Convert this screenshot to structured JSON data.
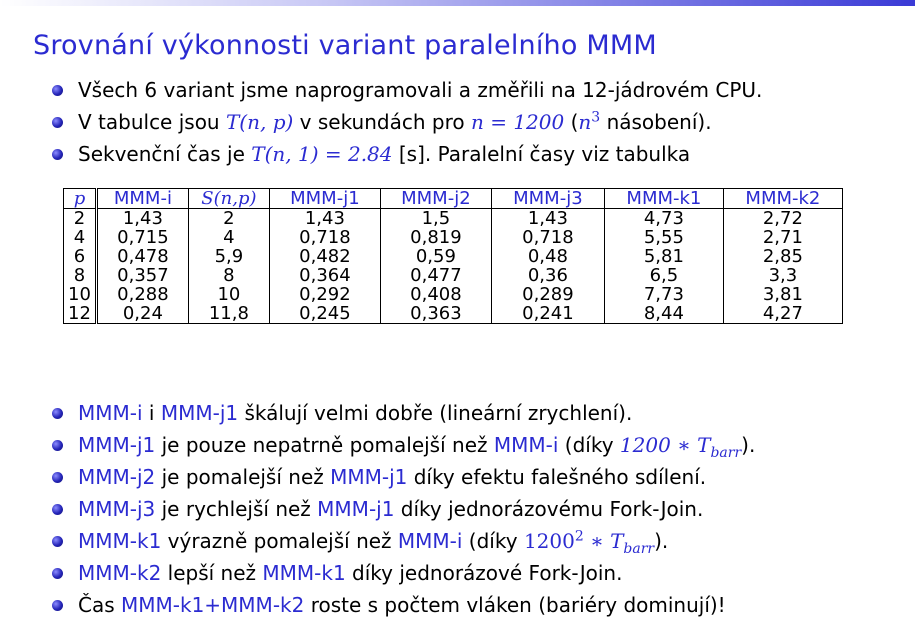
{
  "title": "Srovnání výkonnosti variant paralelního MMM",
  "intro": {
    "b1": "Všech 6 variant jsme naprogramovali a změřili na 12-jádrovém CPU.",
    "b2_a": "V tabulce jsou ",
    "b2_m1": "T(n, p)",
    "b2_b": " v sekundách pro ",
    "b2_m2": "n = 1200",
    "b2_c": " (",
    "b2_m3": "n",
    "b2_m3sup": "3",
    "b2_d": " násobení).",
    "b3_a": "Sekvenční čas je ",
    "b3_m": "T(n, 1) = 2.84",
    "b3_b": " [s]. Paralelní časy viz tabulka"
  },
  "table": {
    "headers": [
      "p",
      "MMM-i",
      "S(n,p)",
      "MMM-j1",
      "MMM-j2",
      "MMM-j3",
      "MMM-k1",
      "MMM-k2"
    ],
    "rows": [
      [
        "2",
        "1,43",
        "2",
        "1,43",
        "1,5",
        "1,43",
        "4,73",
        "2,72"
      ],
      [
        "4",
        "0,715",
        "4",
        "0,718",
        "0,819",
        "0,718",
        "5,55",
        "2,71"
      ],
      [
        "6",
        "0,478",
        "5,9",
        "0,482",
        "0,59",
        "0,48",
        "5,81",
        "2,85"
      ],
      [
        "8",
        "0,357",
        "8",
        "0,364",
        "0,477",
        "0,36",
        "6,5",
        "3,3"
      ],
      [
        "10",
        "0,288",
        "10",
        "0,292",
        "0,408",
        "0,289",
        "7,73",
        "3,81"
      ],
      [
        "12",
        "0,24",
        "11,8",
        "0,245",
        "0,363",
        "0,241",
        "8,44",
        "4,27"
      ]
    ]
  },
  "notes": {
    "n1": {
      "a": "MMM-i",
      "b": " i ",
      "c": "MMM-j1",
      "d": " škálují velmi dobře (lineární zrychlení)."
    },
    "n2": {
      "a": "MMM-j1",
      "b": " je pouze nepatrně pomalejší než ",
      "c": "MMM-i",
      "d": " (díky ",
      "m": "1200 ∗ T",
      "msub": "barr",
      "e": ")."
    },
    "n3": {
      "a": "MMM-j2",
      "b": " je pomalejší než ",
      "c": "MMM-j1",
      "d": " díky efektu falešného sdílení."
    },
    "n4": {
      "a": "MMM-j3",
      "b": " je rychlejší než ",
      "c": "MMM-j1",
      "d": " díky jednorázovému Fork-Join."
    },
    "n5": {
      "a": "MMM-k1",
      "b": " výrazně pomalejší než ",
      "c": "MMM-i",
      "d": " (díky ",
      "m1": "1200",
      "msup": "2",
      "m2": " ∗ T",
      "msub": "barr",
      "e": ")."
    },
    "n6": {
      "a": "MMM-k2",
      "b": " lepší než ",
      "c": "MMM-k1",
      "d": " díky jednorázové Fork-Join."
    },
    "n7": {
      "a": "Čas ",
      "b": "MMM-k1+MMM-k2",
      "c": " roste s počtem vláken (bariéry dominují)!"
    }
  },
  "colors": {
    "accent": "#2b2bd1"
  }
}
